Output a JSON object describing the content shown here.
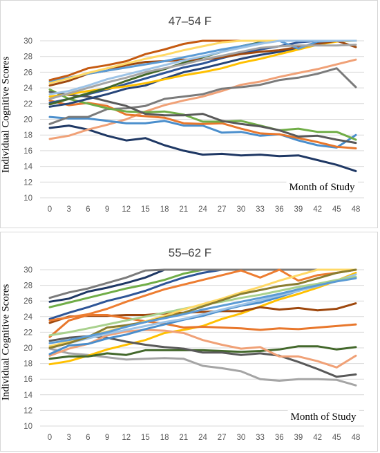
{
  "chart_data": [
    {
      "type": "line",
      "title": "47–54 F",
      "ylabel": "Individual Cognitive Scores",
      "xlabel": "Month of Study",
      "x": [
        0,
        3,
        6,
        9,
        12,
        15,
        18,
        21,
        24,
        27,
        30,
        33,
        36,
        39,
        42,
        45,
        48
      ],
      "ylim": [
        10,
        30
      ],
      "yticks": [
        10,
        12,
        14,
        16,
        18,
        20,
        22,
        24,
        26,
        28,
        30
      ],
      "grid": true,
      "series": [
        {
          "color": "#1f3864",
          "values": [
            18.9,
            19.2,
            18.7,
            17.9,
            17.3,
            17.6,
            16.7,
            16.0,
            15.5,
            15.6,
            15.4,
            15.5,
            15.3,
            15.4,
            14.8,
            14.2,
            13.4
          ]
        },
        {
          "color": "#f0a177",
          "values": [
            17.5,
            17.9,
            18.7,
            19.3,
            20.0,
            21.0,
            21.8,
            22.4,
            22.9,
            23.6,
            24.4,
            24.8,
            25.4,
            25.9,
            26.4,
            27.0,
            27.6
          ]
        },
        {
          "color": "#4a8ecc",
          "values": [
            20.3,
            20.1,
            20.1,
            19.8,
            19.5,
            19.5,
            19.8,
            19.2,
            19.2,
            18.3,
            18.4,
            17.9,
            18.1,
            17.3,
            16.7,
            16.4,
            18.0
          ]
        },
        {
          "color": "#7b7b7b",
          "values": [
            19.4,
            20.3,
            20.3,
            21.3,
            21.4,
            21.7,
            22.6,
            22.9,
            23.2,
            23.9,
            24.1,
            24.4,
            25.0,
            25.3,
            25.8,
            26.5,
            24.1
          ]
        },
        {
          "color": "#e8772c",
          "values": [
            22.4,
            21.8,
            22.1,
            21.7,
            20.6,
            20.4,
            20.2,
            19.5,
            19.4,
            19.5,
            18.8,
            18.2,
            18.1,
            17.6,
            17.1,
            16.5,
            16.3
          ]
        },
        {
          "color": "#70ad47",
          "values": [
            23.8,
            22.6,
            22.0,
            21.4,
            21.0,
            20.9,
            21.0,
            20.6,
            19.7,
            19.7,
            19.8,
            19.2,
            18.6,
            18.8,
            18.4,
            18.4,
            17.4
          ]
        },
        {
          "color": "#595959",
          "values": [
            23.5,
            23.1,
            22.9,
            22.3,
            21.7,
            20.7,
            20.5,
            20.5,
            20.7,
            19.8,
            19.4,
            19.1,
            18.6,
            17.8,
            17.9,
            17.4,
            17.0
          ]
        },
        {
          "color": "#264478",
          "values": [
            21.6,
            22.0,
            22.6,
            23.2,
            23.9,
            24.3,
            25.2,
            26.0,
            26.5,
            27.1,
            27.7,
            28.2,
            28.6,
            29.1,
            29.7,
            30.0,
            30.0
          ]
        },
        {
          "color": "#2e5597",
          "values": [
            22.1,
            22.6,
            23.2,
            23.8,
            24.5,
            25.2,
            25.9,
            26.6,
            27.1,
            27.8,
            28.4,
            28.9,
            29.3,
            29.8,
            30.0,
            30.0,
            30.0
          ]
        },
        {
          "color": "#ffc000",
          "values": [
            22.9,
            23.2,
            23.6,
            23.9,
            24.2,
            24.6,
            25.1,
            25.6,
            26.0,
            26.5,
            27.2,
            27.7,
            28.3,
            28.9,
            29.5,
            29.9,
            30.0
          ]
        },
        {
          "color": "#43682b",
          "values": [
            21.9,
            22.6,
            23.3,
            24.0,
            24.9,
            25.7,
            26.4,
            27.2,
            27.9,
            28.6,
            29.3,
            29.8,
            30.0,
            30.0,
            30.0,
            30.0,
            30.0
          ]
        },
        {
          "color": "#9e480e",
          "values": [
            24.3,
            24.9,
            25.8,
            26.2,
            26.9,
            27.3,
            27.4,
            27.6,
            27.6,
            27.9,
            28.3,
            28.6,
            28.8,
            29.2,
            29.6,
            30.0,
            29.2
          ]
        },
        {
          "color": "#5b9bd5",
          "values": [
            24.8,
            25.3,
            25.8,
            26.2,
            26.6,
            27.0,
            27.4,
            27.9,
            28.4,
            28.9,
            29.3,
            29.7,
            30.0,
            29.0,
            29.9,
            30.0,
            30.0
          ]
        },
        {
          "color": "#c55a11",
          "values": [
            25.0,
            25.6,
            26.5,
            26.9,
            27.4,
            28.3,
            28.9,
            29.6,
            30.0,
            30.0,
            30.0,
            30.0,
            30.0,
            30.0,
            30.0,
            30.0,
            30.0
          ]
        },
        {
          "color": "#a5a5a5",
          "values": [
            22.6,
            23.3,
            24.0,
            24.7,
            25.3,
            26.0,
            26.5,
            27.0,
            27.6,
            28.1,
            28.6,
            29.1,
            29.3,
            29.4,
            29.4,
            29.4,
            29.5
          ]
        },
        {
          "color": "#ffd966",
          "values": [
            24.6,
            25.2,
            25.9,
            26.5,
            27.1,
            27.7,
            28.2,
            28.8,
            29.3,
            29.8,
            30.0,
            30.0,
            30.0,
            30.0,
            30.0,
            30.0,
            30.0
          ]
        },
        {
          "color": "#9dc3e6",
          "values": [
            23.2,
            23.6,
            24.3,
            25.1,
            25.7,
            26.3,
            26.9,
            27.5,
            28.0,
            28.6,
            29.1,
            29.6,
            30.0,
            30.0,
            30.0,
            30.0,
            30.0
          ]
        }
      ]
    },
    {
      "type": "line",
      "title": "55–62 F",
      "ylabel": "Individual Cognitive Scores",
      "xlabel": "Month of Study",
      "x": [
        0,
        3,
        6,
        9,
        12,
        15,
        18,
        21,
        24,
        27,
        30,
        33,
        36,
        39,
        42,
        45,
        48
      ],
      "ylim": [
        10,
        30
      ],
      "yticks": [
        10,
        12,
        14,
        16,
        18,
        20,
        22,
        24,
        26,
        28,
        30
      ],
      "grid": true,
      "series": [
        {
          "color": "#a5a5a5",
          "values": [
            19.9,
            19.3,
            19.1,
            18.8,
            18.5,
            18.6,
            18.7,
            18.6,
            17.7,
            17.4,
            17.0,
            16.0,
            15.8,
            16.0,
            16.0,
            15.9,
            15.2
          ]
        },
        {
          "color": "#ffc000",
          "values": [
            17.9,
            18.3,
            19.0,
            19.8,
            20.4,
            21.0,
            21.9,
            22.3,
            22.8,
            23.7,
            24.4,
            25.3,
            26.2,
            26.9,
            27.7,
            28.6,
            29.6
          ]
        },
        {
          "color": "#43682b",
          "values": [
            18.6,
            18.9,
            18.9,
            19.3,
            19.1,
            19.7,
            19.7,
            19.7,
            19.7,
            19.6,
            19.5,
            19.6,
            19.8,
            20.2,
            20.2,
            19.8,
            20.1
          ]
        },
        {
          "color": "#595959",
          "values": [
            20.9,
            21.3,
            21.5,
            21.3,
            20.8,
            20.4,
            20.1,
            19.9,
            19.4,
            19.4,
            19.1,
            19.3,
            19.0,
            18.2,
            17.3,
            16.3,
            16.6
          ]
        },
        {
          "color": "#f0a177",
          "values": [
            19.0,
            19.9,
            20.5,
            21.6,
            22.1,
            22.3,
            22.2,
            21.9,
            21.0,
            20.4,
            19.9,
            20.1,
            18.9,
            18.9,
            18.3,
            17.5,
            19.0
          ]
        },
        {
          "color": "#9e480e",
          "values": [
            23.2,
            24.0,
            24.1,
            24.1,
            24.2,
            24.2,
            24.4,
            24.5,
            24.6,
            24.7,
            24.7,
            25.2,
            24.9,
            25.1,
            24.8,
            25.0,
            25.7
          ]
        },
        {
          "color": "#e8772c",
          "values": [
            21.4,
            23.5,
            24.2,
            24.2,
            23.8,
            23.4,
            23.1,
            22.6,
            22.7,
            22.6,
            22.5,
            22.3,
            22.5,
            22.4,
            22.6,
            22.8,
            23.0
          ]
        },
        {
          "color": "#4a8ecc",
          "values": [
            19.2,
            20.3,
            20.5,
            21.2,
            21.7,
            22.4,
            23.0,
            23.6,
            24.1,
            24.8,
            25.4,
            25.8,
            26.5,
            27.3,
            28.0,
            28.6,
            29.0
          ]
        },
        {
          "color": "#9dc3e6",
          "values": [
            20.2,
            20.6,
            21.2,
            21.8,
            22.3,
            22.8,
            23.3,
            23.7,
            24.3,
            24.9,
            25.5,
            26.1,
            26.7,
            27.3,
            27.9,
            28.6,
            29.4
          ]
        },
        {
          "color": "#70ad47",
          "values": [
            25.2,
            25.8,
            26.4,
            27.0,
            27.6,
            28.1,
            28.7,
            29.5,
            30.0,
            30.0,
            30.0,
            30.0,
            30.0,
            30.0,
            30.0,
            30.0,
            30.0
          ]
        },
        {
          "color": "#2e5597",
          "values": [
            23.7,
            24.5,
            25.2,
            26.0,
            26.6,
            27.3,
            28.2,
            29.0,
            29.6,
            30.0,
            30.0,
            30.0,
            30.0,
            30.0,
            30.0,
            30.0,
            30.0
          ]
        },
        {
          "color": "#1f3864",
          "values": [
            25.9,
            26.3,
            27.2,
            27.7,
            28.3,
            29.0,
            30.0,
            30.0,
            30.0,
            30.0,
            30.0,
            30.0,
            30.0,
            30.0,
            30.0,
            30.0,
            30.0
          ]
        },
        {
          "color": "#7b7b7b",
          "values": [
            26.4,
            27.1,
            27.6,
            28.3,
            29.0,
            29.9,
            30.0,
            30.0,
            30.0,
            30.0,
            30.0,
            30.0,
            30.0,
            30.0,
            30.0,
            30.0,
            30.0
          ]
        },
        {
          "color": "#ed7d31",
          "values": [
            23.5,
            23.9,
            24.3,
            25.0,
            25.9,
            26.7,
            27.5,
            28.1,
            28.7,
            29.3,
            29.9,
            29.0,
            30.0,
            28.6,
            29.3,
            29.6,
            30.0
          ]
        },
        {
          "color": "#a9d18e",
          "values": [
            21.6,
            22.0,
            22.5,
            23.0,
            23.5,
            24.0,
            24.5,
            25.0,
            25.5,
            25.9,
            26.4,
            26.8,
            27.3,
            27.8,
            28.2,
            28.7,
            29.1
          ]
        },
        {
          "color": "#ffd966",
          "values": [
            20.2,
            20.8,
            21.5,
            22.1,
            22.8,
            23.4,
            24.1,
            24.9,
            25.6,
            26.3,
            27.1,
            27.8,
            28.6,
            29.3,
            30.0,
            30.0,
            30.0
          ]
        },
        {
          "color": "#8a7d30",
          "values": [
            20.0,
            20.6,
            21.4,
            22.6,
            22.9,
            23.3,
            23.9,
            24.5,
            25.3,
            26.1,
            26.9,
            27.4,
            27.9,
            28.2,
            28.9,
            29.6,
            30.0
          ]
        },
        {
          "color": "#5b9bd5",
          "values": [
            20.6,
            21.0,
            21.5,
            22.0,
            22.7,
            23.3,
            23.8,
            24.3,
            24.9,
            25.4,
            25.9,
            26.4,
            26.9,
            27.5,
            28.0,
            28.5,
            28.9
          ]
        }
      ]
    }
  ]
}
